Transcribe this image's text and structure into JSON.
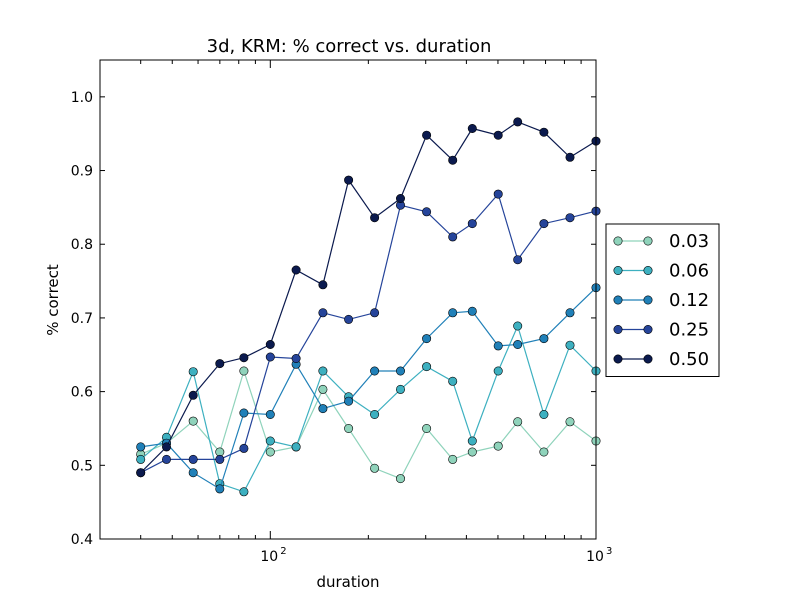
{
  "chart_data": {
    "type": "line",
    "title": "3d, KRM: % correct vs. duration",
    "xlabel": "duration",
    "ylabel": "% correct",
    "xscale": "log",
    "xlim": [
      30,
      1000
    ],
    "ylim": [
      0.4,
      1.05
    ],
    "yticks": [
      0.4,
      0.5,
      0.6,
      0.7,
      0.8,
      0.9,
      1.0
    ],
    "ytick_labels": [
      "0.4",
      "0.5",
      "0.6",
      "0.7",
      "0.8",
      "0.9",
      "1.0"
    ],
    "xticks": [
      {
        "value": 100,
        "base": "10",
        "exp": "2"
      },
      {
        "value": 1000,
        "base": "10",
        "exp": "3"
      }
    ],
    "legend_position": "right-outside",
    "x": [
      40,
      48,
      58,
      70,
      83,
      100,
      120,
      145,
      174,
      209,
      251,
      302,
      363,
      417,
      501,
      575,
      692,
      832,
      1000
    ],
    "series": [
      {
        "name": "0.03",
        "color": "#8fd3bb",
        "values": [
          0.515,
          0.53,
          0.56,
          0.518,
          0.628,
          0.518,
          0.525,
          0.603,
          0.55,
          0.496,
          0.482,
          0.55,
          0.508,
          0.518,
          0.526,
          0.559,
          0.518,
          0.559,
          0.533
        ]
      },
      {
        "name": "0.06",
        "color": "#3db0c0",
        "values": [
          0.508,
          0.538,
          0.627,
          0.475,
          0.464,
          0.533,
          0.525,
          0.628,
          0.593,
          0.569,
          0.603,
          0.634,
          0.614,
          0.533,
          0.628,
          0.689,
          0.569,
          0.663,
          0.628
        ]
      },
      {
        "name": "0.12",
        "color": "#2080b8",
        "values": [
          0.525,
          0.53,
          0.49,
          0.468,
          0.571,
          0.569,
          0.637,
          0.577,
          0.587,
          0.628,
          0.628,
          0.672,
          0.707,
          0.709,
          0.662,
          0.664,
          0.672,
          0.707,
          0.741
        ]
      },
      {
        "name": "0.25",
        "color": "#25449a",
        "values": [
          0.49,
          0.508,
          0.508,
          0.508,
          0.523,
          0.647,
          0.645,
          0.707,
          0.698,
          0.707,
          0.853,
          0.844,
          0.81,
          0.828,
          0.868,
          0.779,
          0.828,
          0.836,
          0.845
        ]
      },
      {
        "name": "0.50",
        "color": "#0b1a4e",
        "values": [
          0.49,
          0.525,
          0.595,
          0.638,
          0.646,
          0.664,
          0.765,
          0.745,
          0.887,
          0.836,
          0.862,
          0.948,
          0.914,
          0.957,
          0.948,
          0.966,
          0.952,
          0.918,
          0.94
        ]
      }
    ]
  }
}
